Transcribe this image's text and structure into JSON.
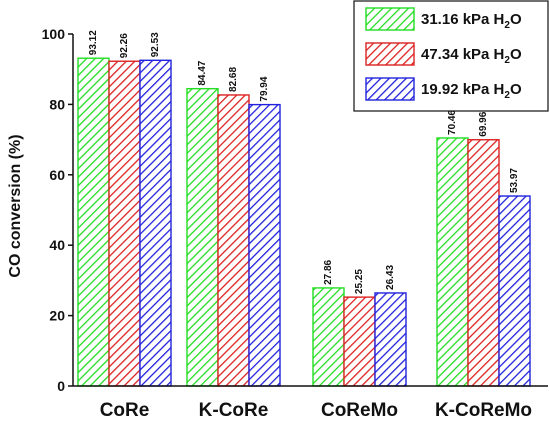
{
  "chart_data": {
    "type": "bar",
    "categories": [
      "CoRe",
      "K-CoRe",
      "CoReMo",
      "K-CoReMo"
    ],
    "series": [
      {
        "name": "31.16 kPa H",
        "name_sub": "2",
        "name_suffix": "O",
        "color": "#22dd22",
        "values": [
          93.12,
          84.47,
          27.86,
          70.46
        ],
        "labels": [
          "93.12",
          "84.47",
          "27.86",
          "70.46"
        ]
      },
      {
        "name": "47.34 kPa H",
        "name_sub": "2",
        "name_suffix": "O",
        "color": "#dd2222",
        "values": [
          92.26,
          82.68,
          25.25,
          69.96
        ],
        "labels": [
          "92.26",
          "82.68",
          "25.25",
          "69.96"
        ]
      },
      {
        "name": "19.92 kPa H",
        "name_sub": "2",
        "name_suffix": "O",
        "color": "#2222dd",
        "values": [
          92.53,
          79.94,
          26.43,
          53.97
        ],
        "labels": [
          "92.53",
          "79.94",
          "26.43",
          "53.97"
        ]
      }
    ],
    "ylabel": "CO conversion (%)",
    "ylim": [
      0,
      100
    ],
    "yticks": [
      "0",
      "20",
      "40",
      "60",
      "80",
      "100"
    ],
    "legend_position": "top-right",
    "grid": false,
    "fill_pattern": "diagonal-hatch"
  }
}
